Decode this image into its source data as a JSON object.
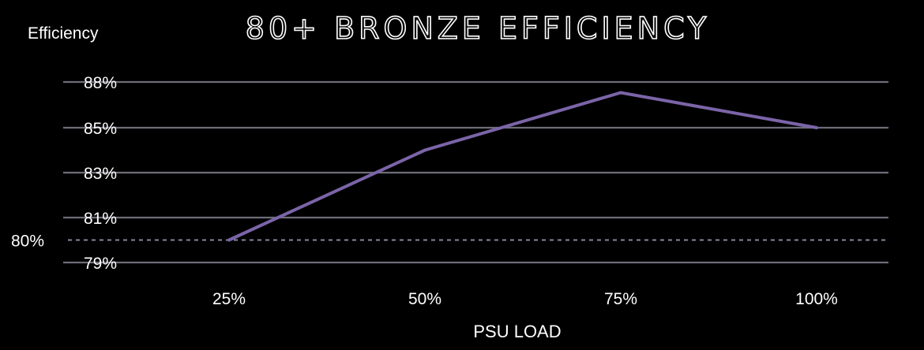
{
  "chart_data": {
    "type": "line",
    "title": "80+ BRONZE EFFICIENCY",
    "ylabel": "Efficiency",
    "xlabel": "PSU LOAD",
    "categories": [
      "25%",
      "50%",
      "75%",
      "100%"
    ],
    "series": [
      {
        "values": [
          80,
          84,
          87.3,
          85
        ]
      }
    ],
    "y_ticks": [
      {
        "value": 88,
        "label": "88%"
      },
      {
        "value": 85,
        "label": "85%"
      },
      {
        "value": 83,
        "label": "83%"
      },
      {
        "value": 81,
        "label": "81%"
      },
      {
        "value": 79,
        "label": "79%"
      }
    ],
    "reference_line": {
      "value": 80,
      "label": "80%"
    },
    "ylim": [
      79,
      88
    ],
    "grid": true,
    "colors": {
      "background": "#000000",
      "line": "#7b64a8",
      "grid": "#6d6d79",
      "reference": "#8a86a0",
      "text": "#ffffff"
    }
  }
}
